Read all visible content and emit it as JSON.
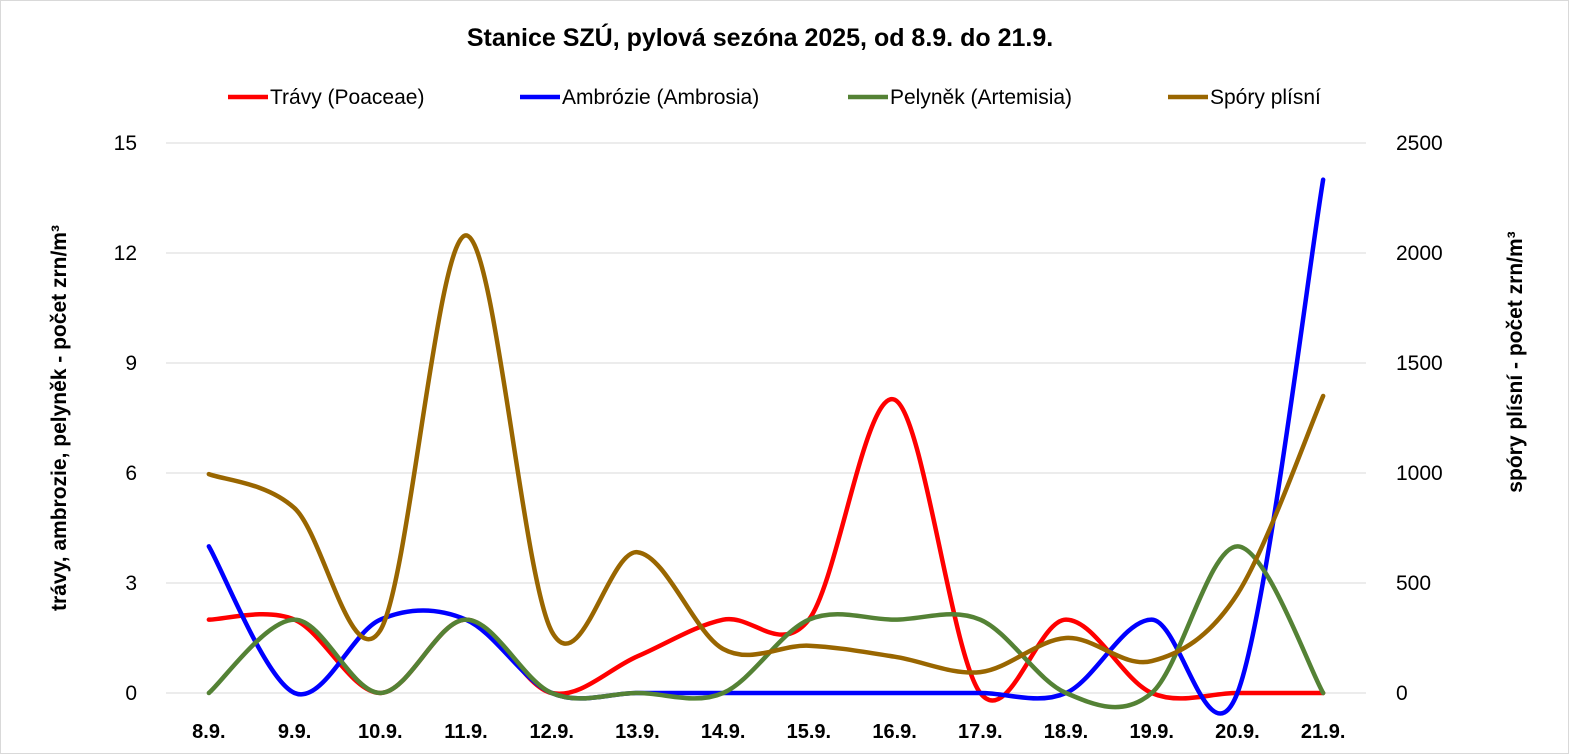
{
  "chart_data": {
    "type": "line",
    "title": "Stanice SZÚ, pylová sezóna 2025, od 8.9. do 21.9.",
    "categories": [
      "8.9.",
      "9.9.",
      "10.9.",
      "11.9.",
      "12.9.",
      "13.9.",
      "14.9.",
      "15.9.",
      "16.9.",
      "17.9.",
      "18.9.",
      "19.9.",
      "20.9.",
      "21.9."
    ],
    "ylabel": "trávy, ambrozie, pelyněk - počet zrn/m³",
    "ylabel_right": "spóry plísní - počet zrn/m³",
    "ylim": [
      0,
      15
    ],
    "yticks": [
      "0",
      "3",
      "6",
      "9",
      "12",
      "15"
    ],
    "ylim_right": [
      0,
      2500
    ],
    "yticks_right": [
      "0",
      "500",
      "1000",
      "1500",
      "2000",
      "2500"
    ],
    "grid": "horizontal",
    "legend_position": "top",
    "smooth": true,
    "series": [
      {
        "name": "Trávy (Poaceae)",
        "axis": "left",
        "color": "#ff0000",
        "values": [
          2,
          2,
          0,
          2,
          0,
          1,
          2,
          2,
          8,
          0,
          2,
          0,
          0,
          0
        ]
      },
      {
        "name": "Ambrózie (Ambrosia)",
        "axis": "left",
        "color": "#0000ff",
        "values": [
          4,
          0,
          2,
          2,
          0,
          0,
          0,
          0,
          0,
          0,
          0,
          2,
          0,
          14
        ]
      },
      {
        "name": "Pelyněk (Artemisia)",
        "axis": "left",
        "color": "#548235",
        "values": [
          0,
          2,
          0,
          2,
          0,
          0,
          0,
          2,
          2,
          2,
          0,
          0,
          4,
          0
        ]
      },
      {
        "name": "Spóry plísní",
        "axis": "right",
        "color": "#996600",
        "values": [
          995,
          840,
          285,
          2080,
          280,
          640,
          200,
          215,
          165,
          95,
          250,
          145,
          450,
          1350
        ]
      }
    ]
  }
}
